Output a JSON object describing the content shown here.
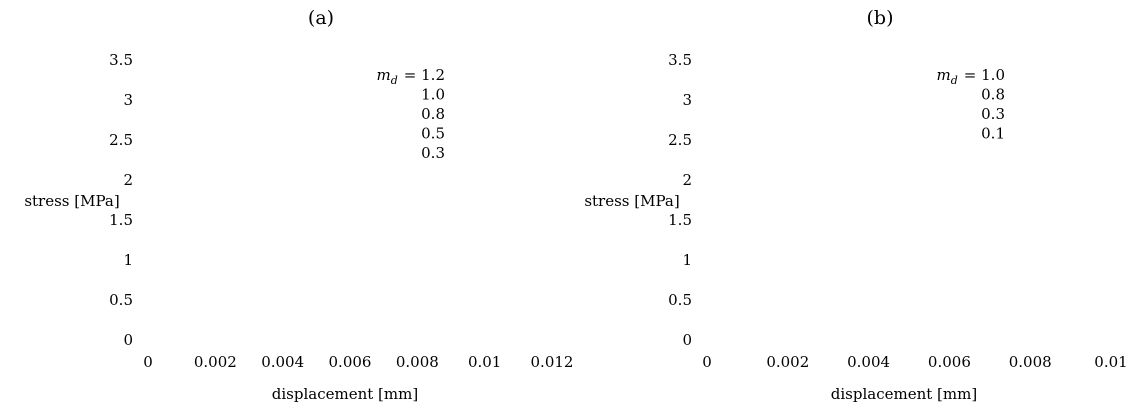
{
  "chart_data": [
    {
      "type": "line",
      "title": "(a)",
      "xlabel": "displacement [mm]",
      "ylabel": "stress [MPa]",
      "xlim": [
        0,
        0.012
      ],
      "ylim": [
        0,
        3.5
      ],
      "xticks": [
        "0",
        "0.002",
        "0.004",
        "0.006",
        "0.008",
        "0.01",
        "0.012"
      ],
      "xtick_values": [
        0,
        0.002,
        0.004,
        0.006,
        0.008,
        0.01,
        0.012
      ],
      "yticks": [
        "0",
        "0.5",
        "1",
        "1.5",
        "2",
        "2.5",
        "3",
        "3.5"
      ],
      "ytick_values": [
        0,
        0.5,
        1,
        1.5,
        2,
        2.5,
        3,
        3.5
      ],
      "legend": {
        "symbol": "m",
        "subscript": "d",
        "equals": "= ",
        "entries": [
          "1.2",
          "1.0",
          "0.8",
          "0.5",
          "0.3"
        ],
        "placement": "top-right"
      },
      "grid": false,
      "series": []
    },
    {
      "type": "line",
      "title": "(b)",
      "xlabel": "displacement [mm]",
      "ylabel": "stress [MPa]",
      "xlim": [
        0,
        0.01
      ],
      "ylim": [
        0,
        3.5
      ],
      "xticks": [
        "0",
        "0.002",
        "0.004",
        "0.006",
        "0.008",
        "0.01"
      ],
      "xtick_values": [
        0,
        0.002,
        0.004,
        0.006,
        0.008,
        0.01
      ],
      "yticks": [
        "0",
        "0.5",
        "1",
        "1.5",
        "2",
        "2.5",
        "3",
        "3.5"
      ],
      "ytick_values": [
        0,
        0.5,
        1,
        1.5,
        2,
        2.5,
        3,
        3.5
      ],
      "legend": {
        "symbol": "m",
        "subscript": "d",
        "equals": "= ",
        "entries": [
          "1.0",
          "0.8",
          "0.3",
          "0.1"
        ],
        "placement": "top-right"
      },
      "grid": false,
      "series": []
    }
  ]
}
